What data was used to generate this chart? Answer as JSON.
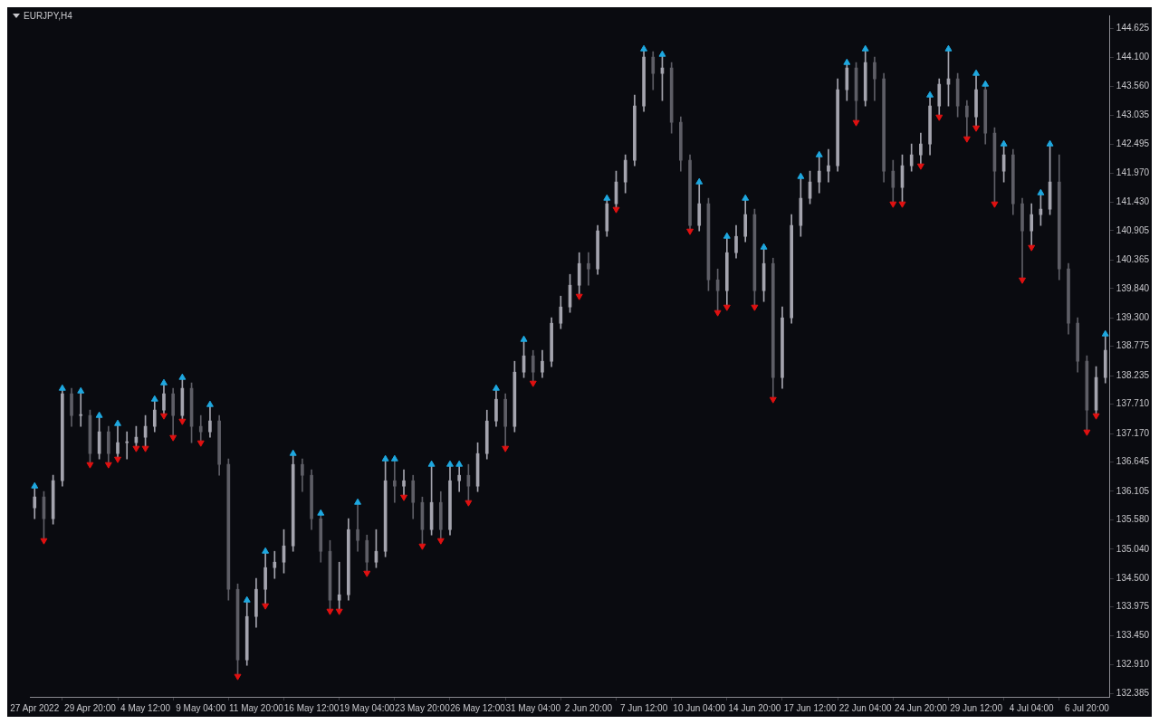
{
  "chart_data": {
    "type": "candlestick",
    "title": "EURJPY,H4",
    "categories": [
      "27 Apr 2022",
      null,
      null,
      null,
      null,
      null,
      "29 Apr 20:00",
      null,
      null,
      null,
      null,
      null,
      "4 May 12:00",
      null,
      null,
      null,
      null,
      null,
      "9 May 04:00",
      null,
      null,
      null,
      null,
      null,
      "11 May 20:00",
      null,
      null,
      null,
      null,
      null,
      "16 May 12:00",
      null,
      null,
      null,
      null,
      null,
      "19 May 04:00",
      null,
      null,
      null,
      null,
      null,
      "23 May 20:00",
      null,
      null,
      null,
      null,
      null,
      "26 May 12:00",
      null,
      null,
      null,
      null,
      null,
      "31 May 04:00",
      null,
      null,
      null,
      null,
      null,
      "2 Jun 20:00",
      null,
      null,
      null,
      null,
      null,
      "7 Jun 12:00",
      null,
      null,
      null,
      null,
      null,
      "10 Jun 04:00",
      null,
      null,
      null,
      null,
      null,
      "14 Jun 20:00",
      null,
      null,
      null,
      null,
      null,
      "17 Jun 12:00",
      null,
      null,
      null,
      null,
      null,
      "22 Jun 04:00",
      null,
      null,
      null,
      null,
      null,
      "24 Jun 20:00",
      null,
      null,
      null,
      null,
      null,
      "29 Jun 12:00",
      null,
      null,
      null,
      null,
      null,
      "4 Jul 04:00",
      null,
      null,
      null,
      null,
      null,
      "6 Jul 20:00",
      null,
      null
    ],
    "ohlc": [
      [
        135.8,
        136.2,
        135.6,
        136.0
      ],
      [
        136.0,
        136.1,
        135.2,
        135.6
      ],
      [
        135.6,
        136.4,
        135.5,
        136.3
      ],
      [
        136.3,
        138.0,
        136.2,
        137.9
      ],
      [
        137.9,
        138.0,
        137.3,
        137.5
      ],
      [
        137.5,
        137.95,
        137.3,
        137.5
      ],
      [
        137.5,
        137.6,
        136.6,
        136.8
      ],
      [
        136.8,
        137.5,
        136.7,
        137.2
      ],
      [
        137.2,
        137.3,
        136.6,
        136.8
      ],
      [
        136.8,
        137.35,
        136.7,
        137.0
      ],
      [
        137.0,
        137.2,
        136.7,
        137.0
      ],
      [
        137.0,
        137.3,
        136.9,
        137.1
      ],
      [
        137.1,
        137.5,
        136.9,
        137.3
      ],
      [
        137.3,
        137.8,
        137.2,
        137.6
      ],
      [
        137.6,
        138.1,
        137.5,
        137.9
      ],
      [
        137.9,
        138.0,
        137.1,
        137.5
      ],
      [
        137.5,
        138.2,
        137.4,
        138.0
      ],
      [
        138.0,
        138.1,
        137.0,
        137.3
      ],
      [
        137.3,
        137.5,
        137.0,
        137.2
      ],
      [
        137.2,
        137.7,
        137.1,
        137.4
      ],
      [
        137.4,
        137.5,
        136.4,
        136.6
      ],
      [
        136.6,
        136.7,
        134.1,
        134.3
      ],
      [
        134.3,
        134.4,
        132.7,
        133.0
      ],
      [
        133.0,
        134.1,
        132.9,
        133.8
      ],
      [
        133.8,
        134.5,
        133.6,
        134.3
      ],
      [
        134.3,
        135.0,
        134.0,
        134.7
      ],
      [
        134.7,
        135.0,
        134.5,
        134.8
      ],
      [
        134.8,
        135.4,
        134.6,
        135.1
      ],
      [
        135.1,
        136.8,
        135.0,
        136.6
      ],
      [
        136.6,
        136.7,
        136.1,
        136.4
      ],
      [
        136.4,
        136.5,
        135.4,
        135.6
      ],
      [
        135.6,
        135.7,
        134.8,
        135.0
      ],
      [
        135.0,
        135.2,
        133.9,
        134.1
      ],
      [
        134.1,
        134.8,
        133.9,
        134.2
      ],
      [
        134.2,
        135.6,
        134.1,
        135.4
      ],
      [
        135.4,
        135.9,
        135.0,
        135.2
      ],
      [
        135.2,
        135.3,
        134.6,
        134.8
      ],
      [
        134.8,
        135.4,
        134.7,
        135.0
      ],
      [
        135.0,
        136.7,
        134.9,
        136.3
      ],
      [
        136.3,
        136.7,
        135.9,
        136.2
      ],
      [
        136.2,
        136.5,
        136.0,
        136.3
      ],
      [
        136.3,
        136.4,
        135.6,
        135.9
      ],
      [
        135.9,
        136.0,
        135.1,
        135.4
      ],
      [
        135.4,
        136.6,
        135.3,
        135.9
      ],
      [
        135.9,
        136.1,
        135.2,
        135.4
      ],
      [
        135.4,
        136.6,
        135.3,
        136.3
      ],
      [
        136.3,
        136.6,
        136.1,
        136.4
      ],
      [
        136.4,
        136.6,
        135.9,
        136.2
      ],
      [
        136.2,
        137.0,
        136.1,
        136.8
      ],
      [
        136.8,
        137.6,
        136.7,
        137.4
      ],
      [
        137.4,
        138.0,
        137.3,
        137.8
      ],
      [
        137.8,
        137.9,
        136.9,
        137.3
      ],
      [
        137.3,
        138.5,
        137.2,
        138.3
      ],
      [
        138.3,
        138.9,
        138.2,
        138.6
      ],
      [
        138.6,
        138.7,
        138.1,
        138.3
      ],
      [
        138.3,
        138.7,
        138.2,
        138.5
      ],
      [
        138.5,
        139.3,
        138.4,
        139.2
      ],
      [
        139.2,
        139.7,
        139.1,
        139.5
      ],
      [
        139.5,
        140.1,
        139.4,
        139.9
      ],
      [
        139.9,
        140.5,
        139.7,
        140.3
      ],
      [
        140.3,
        140.5,
        139.9,
        140.2
      ],
      [
        140.2,
        141.0,
        140.1,
        140.9
      ],
      [
        140.9,
        141.5,
        140.8,
        141.4
      ],
      [
        141.4,
        142.0,
        141.3,
        141.8
      ],
      [
        141.8,
        142.3,
        141.6,
        142.2
      ],
      [
        142.2,
        143.4,
        142.1,
        143.2
      ],
      [
        143.2,
        144.25,
        143.1,
        144.1
      ],
      [
        144.1,
        144.2,
        143.5,
        143.8
      ],
      [
        143.8,
        144.15,
        143.3,
        143.9
      ],
      [
        143.9,
        144.0,
        142.7,
        142.9
      ],
      [
        142.9,
        143.0,
        142.0,
        142.2
      ],
      [
        142.2,
        142.3,
        140.9,
        141.0
      ],
      [
        141.0,
        141.8,
        140.9,
        141.4
      ],
      [
        141.4,
        141.5,
        139.8,
        140.0
      ],
      [
        140.0,
        140.2,
        139.4,
        139.8
      ],
      [
        139.8,
        140.8,
        139.5,
        140.5
      ],
      [
        140.5,
        141.0,
        140.4,
        140.8
      ],
      [
        140.8,
        141.5,
        140.7,
        141.2
      ],
      [
        141.2,
        141.3,
        139.5,
        139.8
      ],
      [
        139.8,
        140.6,
        139.6,
        140.3
      ],
      [
        140.3,
        140.4,
        137.8,
        138.2
      ],
      [
        138.2,
        139.5,
        138.0,
        139.3
      ],
      [
        139.3,
        141.2,
        139.2,
        141.0
      ],
      [
        141.0,
        141.9,
        140.8,
        141.5
      ],
      [
        141.5,
        142.0,
        141.4,
        141.8
      ],
      [
        141.8,
        142.3,
        141.6,
        142.0
      ],
      [
        142.0,
        142.4,
        141.8,
        142.1
      ],
      [
        142.1,
        143.7,
        142.0,
        143.5
      ],
      [
        143.5,
        144.0,
        143.3,
        143.9
      ],
      [
        143.9,
        144.0,
        142.9,
        143.3
      ],
      [
        143.3,
        144.25,
        143.2,
        144.0
      ],
      [
        144.0,
        144.1,
        143.3,
        143.7
      ],
      [
        143.7,
        143.8,
        141.8,
        142.0
      ],
      [
        142.0,
        142.2,
        141.4,
        141.7
      ],
      [
        141.7,
        142.3,
        141.4,
        142.1
      ],
      [
        142.1,
        142.5,
        142.0,
        142.3
      ],
      [
        142.3,
        142.7,
        142.1,
        142.5
      ],
      [
        142.5,
        143.4,
        142.3,
        143.2
      ],
      [
        143.2,
        143.7,
        143.0,
        143.6
      ],
      [
        143.6,
        144.25,
        143.2,
        143.7
      ],
      [
        143.7,
        143.8,
        143.0,
        143.2
      ],
      [
        143.2,
        143.3,
        142.6,
        143.0
      ],
      [
        143.0,
        143.8,
        142.8,
        143.5
      ],
      [
        143.5,
        143.6,
        142.5,
        142.7
      ],
      [
        142.7,
        142.8,
        141.4,
        142.0
      ],
      [
        142.0,
        142.5,
        141.8,
        142.3
      ],
      [
        142.3,
        142.4,
        141.2,
        141.4
      ],
      [
        141.4,
        141.5,
        140.0,
        140.9
      ],
      [
        140.9,
        141.4,
        140.6,
        141.2
      ],
      [
        141.2,
        141.6,
        141.0,
        141.3
      ],
      [
        141.3,
        142.5,
        141.2,
        141.8
      ],
      [
        141.8,
        142.3,
        140.0,
        140.2
      ],
      [
        140.2,
        140.3,
        139.0,
        139.2
      ],
      [
        139.2,
        139.3,
        138.3,
        138.5
      ],
      [
        138.5,
        138.6,
        137.2,
        137.6
      ],
      [
        137.6,
        138.4,
        137.5,
        138.2
      ],
      [
        138.2,
        139.0,
        138.1,
        138.7
      ]
    ],
    "colors": [
      "#a4a4ae",
      "#5e5e66",
      "#a4a4ae",
      "#a4a4ae",
      "#5e5e66",
      "#a4a4ae",
      "#5e5e66",
      "#a4a4ae",
      "#5e5e66",
      "#a4a4ae",
      "#a4a4ae",
      "#a4a4ae",
      "#a4a4ae",
      "#a4a4ae",
      "#a4a4ae",
      "#5e5e66",
      "#a4a4ae",
      "#5e5e66",
      "#5e5e66",
      "#a4a4ae",
      "#5e5e66",
      "#5e5e66",
      "#5e5e66",
      "#a4a4ae",
      "#a4a4ae",
      "#a4a4ae",
      "#a4a4ae",
      "#a4a4ae",
      "#a4a4ae",
      "#5e5e66",
      "#5e5e66",
      "#5e5e66",
      "#5e5e66",
      "#a4a4ae",
      "#a4a4ae",
      "#5e5e66",
      "#5e5e66",
      "#a4a4ae",
      "#a4a4ae",
      "#5e5e66",
      "#a4a4ae",
      "#5e5e66",
      "#5e5e66",
      "#a4a4ae",
      "#5e5e66",
      "#a4a4ae",
      "#a4a4ae",
      "#5e5e66",
      "#a4a4ae",
      "#a4a4ae",
      "#a4a4ae",
      "#5e5e66",
      "#a4a4ae",
      "#a4a4ae",
      "#5e5e66",
      "#a4a4ae",
      "#a4a4ae",
      "#a4a4ae",
      "#a4a4ae",
      "#a4a4ae",
      "#5e5e66",
      "#a4a4ae",
      "#a4a4ae",
      "#a4a4ae",
      "#a4a4ae",
      "#a4a4ae",
      "#a4a4ae",
      "#5e5e66",
      "#a4a4ae",
      "#5e5e66",
      "#5e5e66",
      "#5e5e66",
      "#a4a4ae",
      "#5e5e66",
      "#5e5e66",
      "#a4a4ae",
      "#a4a4ae",
      "#a4a4ae",
      "#5e5e66",
      "#a4a4ae",
      "#5e5e66",
      "#a4a4ae",
      "#a4a4ae",
      "#a4a4ae",
      "#a4a4ae",
      "#a4a4ae",
      "#a4a4ae",
      "#a4a4ae",
      "#a4a4ae",
      "#5e5e66",
      "#a4a4ae",
      "#5e5e66",
      "#5e5e66",
      "#5e5e66",
      "#a4a4ae",
      "#a4a4ae",
      "#a4a4ae",
      "#a4a4ae",
      "#a4a4ae",
      "#a4a4ae",
      "#5e5e66",
      "#5e5e66",
      "#a4a4ae",
      "#5e5e66",
      "#5e5e66",
      "#a4a4ae",
      "#5e5e66",
      "#5e5e66",
      "#a4a4ae",
      "#a4a4ae",
      "#a4a4ae",
      "#5e5e66",
      "#5e5e66",
      "#5e5e66",
      "#5e5e66",
      "#a4a4ae",
      "#a4a4ae"
    ],
    "series": [
      {
        "type": "scatter",
        "color": "#1ea8e0",
        "values": [
          136.2,
          null,
          null,
          138.0,
          null,
          137.95,
          null,
          137.5,
          null,
          137.35,
          null,
          null,
          null,
          137.8,
          138.1,
          null,
          138.2,
          null,
          null,
          137.7,
          null,
          null,
          null,
          134.1,
          null,
          135.0,
          null,
          null,
          136.8,
          null,
          null,
          135.7,
          null,
          null,
          null,
          135.9,
          null,
          null,
          136.7,
          136.7,
          null,
          null,
          null,
          136.6,
          null,
          136.6,
          136.6,
          null,
          null,
          null,
          138.0,
          null,
          null,
          138.9,
          null,
          null,
          null,
          null,
          null,
          null,
          null,
          null,
          141.5,
          null,
          null,
          null,
          144.25,
          null,
          144.15,
          null,
          null,
          null,
          141.8,
          null,
          null,
          140.8,
          null,
          141.5,
          null,
          140.6,
          null,
          null,
          null,
          141.9,
          null,
          142.3,
          null,
          null,
          144.0,
          null,
          144.25,
          null,
          null,
          null,
          null,
          null,
          null,
          143.4,
          null,
          144.25,
          null,
          null,
          143.8,
          143.6,
          null,
          142.5,
          null,
          null,
          null,
          141.6,
          142.5,
          null,
          null,
          null,
          null,
          null,
          139.0
        ]
      },
      {
        "type": "scatter",
        "color": "#e01010",
        "values": [
          null,
          135.2,
          null,
          null,
          null,
          null,
          136.6,
          null,
          136.6,
          136.7,
          null,
          136.9,
          136.9,
          null,
          137.5,
          137.1,
          137.4,
          null,
          137.0,
          null,
          null,
          null,
          132.7,
          null,
          null,
          134.0,
          null,
          null,
          null,
          null,
          null,
          null,
          133.9,
          133.9,
          null,
          null,
          134.6,
          null,
          null,
          null,
          136.0,
          null,
          135.1,
          null,
          135.2,
          null,
          null,
          135.9,
          null,
          null,
          null,
          136.9,
          null,
          null,
          138.1,
          null,
          null,
          null,
          null,
          139.7,
          null,
          null,
          null,
          141.3,
          null,
          null,
          null,
          null,
          null,
          null,
          null,
          140.9,
          null,
          null,
          139.4,
          139.5,
          null,
          null,
          139.5,
          null,
          137.8,
          null,
          null,
          null,
          null,
          null,
          null,
          null,
          null,
          142.9,
          null,
          null,
          null,
          141.4,
          141.4,
          null,
          142.1,
          null,
          143.0,
          null,
          null,
          142.6,
          142.8,
          null,
          141.4,
          null,
          null,
          140.0,
          140.6,
          null,
          null,
          null,
          null,
          null,
          137.2,
          137.5,
          null
        ]
      }
    ],
    "marker": "triangle",
    "ylim": [
      132.32,
      144.87
    ],
    "yticks": [
      {
        "value": 132.385,
        "label": "132.385"
      },
      {
        "value": 132.91,
        "label": "132.910"
      },
      {
        "value": 133.45,
        "label": "133.450"
      },
      {
        "value": 133.975,
        "label": "133.975"
      },
      {
        "value": 134.5,
        "label": "134.500"
      },
      {
        "value": 135.04,
        "label": "135.040"
      },
      {
        "value": 135.58,
        "label": "135.580"
      },
      {
        "value": 136.105,
        "label": "136.105"
      },
      {
        "value": 136.645,
        "label": "136.645"
      },
      {
        "value": 137.17,
        "label": "137.170"
      },
      {
        "value": 137.71,
        "label": "137.710"
      },
      {
        "value": 138.235,
        "label": "138.235"
      },
      {
        "value": 138.775,
        "label": "138.775"
      },
      {
        "value": 139.3,
        "label": "139.300"
      },
      {
        "value": 139.84,
        "label": "139.840"
      },
      {
        "value": 140.365,
        "label": "140.365"
      },
      {
        "value": 140.905,
        "label": "140.905"
      },
      {
        "value": 141.43,
        "label": "141.430"
      },
      {
        "value": 141.97,
        "label": "141.970"
      },
      {
        "value": 142.495,
        "label": "142.495"
      },
      {
        "value": 143.035,
        "label": "143.035"
      },
      {
        "value": 143.56,
        "label": "143.560"
      },
      {
        "value": 144.1,
        "label": "144.100"
      },
      {
        "value": 144.625,
        "label": "144.625"
      }
    ],
    "grid": false,
    "legend": false
  }
}
